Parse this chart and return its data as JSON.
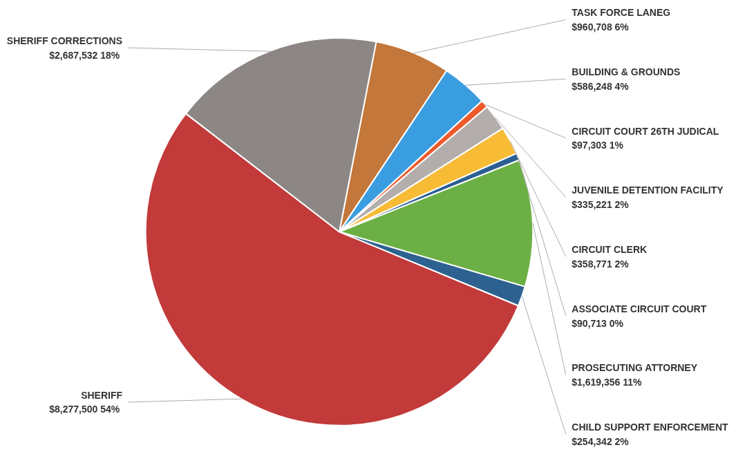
{
  "chart_data": {
    "type": "pie",
    "categories": [
      "TASK FORCE LANEG",
      "BUILDING & GROUNDS",
      "CIRCUIT COURT 26TH JUDICAL",
      "JUVENILE DETENTION FACILITY",
      "CIRCUIT CLERK",
      "ASSOCIATE CIRCUIT COURT",
      "PROSECUTING ATTORNEY",
      "CHILD SUPPORT ENFORCEMENT",
      "SHERIFF",
      "SHERIFF CORRECTIONS"
    ],
    "values": [
      960708,
      586248,
      97303,
      335221,
      358771,
      90713,
      1619356,
      254342,
      8277500,
      2687532
    ],
    "colors": [
      "#c3773a",
      "#3a9de0",
      "#ec5a2c",
      "#b3aeab",
      "#f7bb36",
      "#2b5f92",
      "#6cb045",
      "#2d6290",
      "#c23a3a",
      "#8c8684"
    ],
    "value_labels": [
      "$960,708  6%",
      "$586,248  4%",
      "$97,303  1%",
      "$335,221  2%",
      "$358,771  2%",
      "$90,713  0%",
      "$1,619,356  11%",
      "$254,342  2%",
      "$8,277,500  54%",
      "$2,687,532  18%"
    ]
  }
}
